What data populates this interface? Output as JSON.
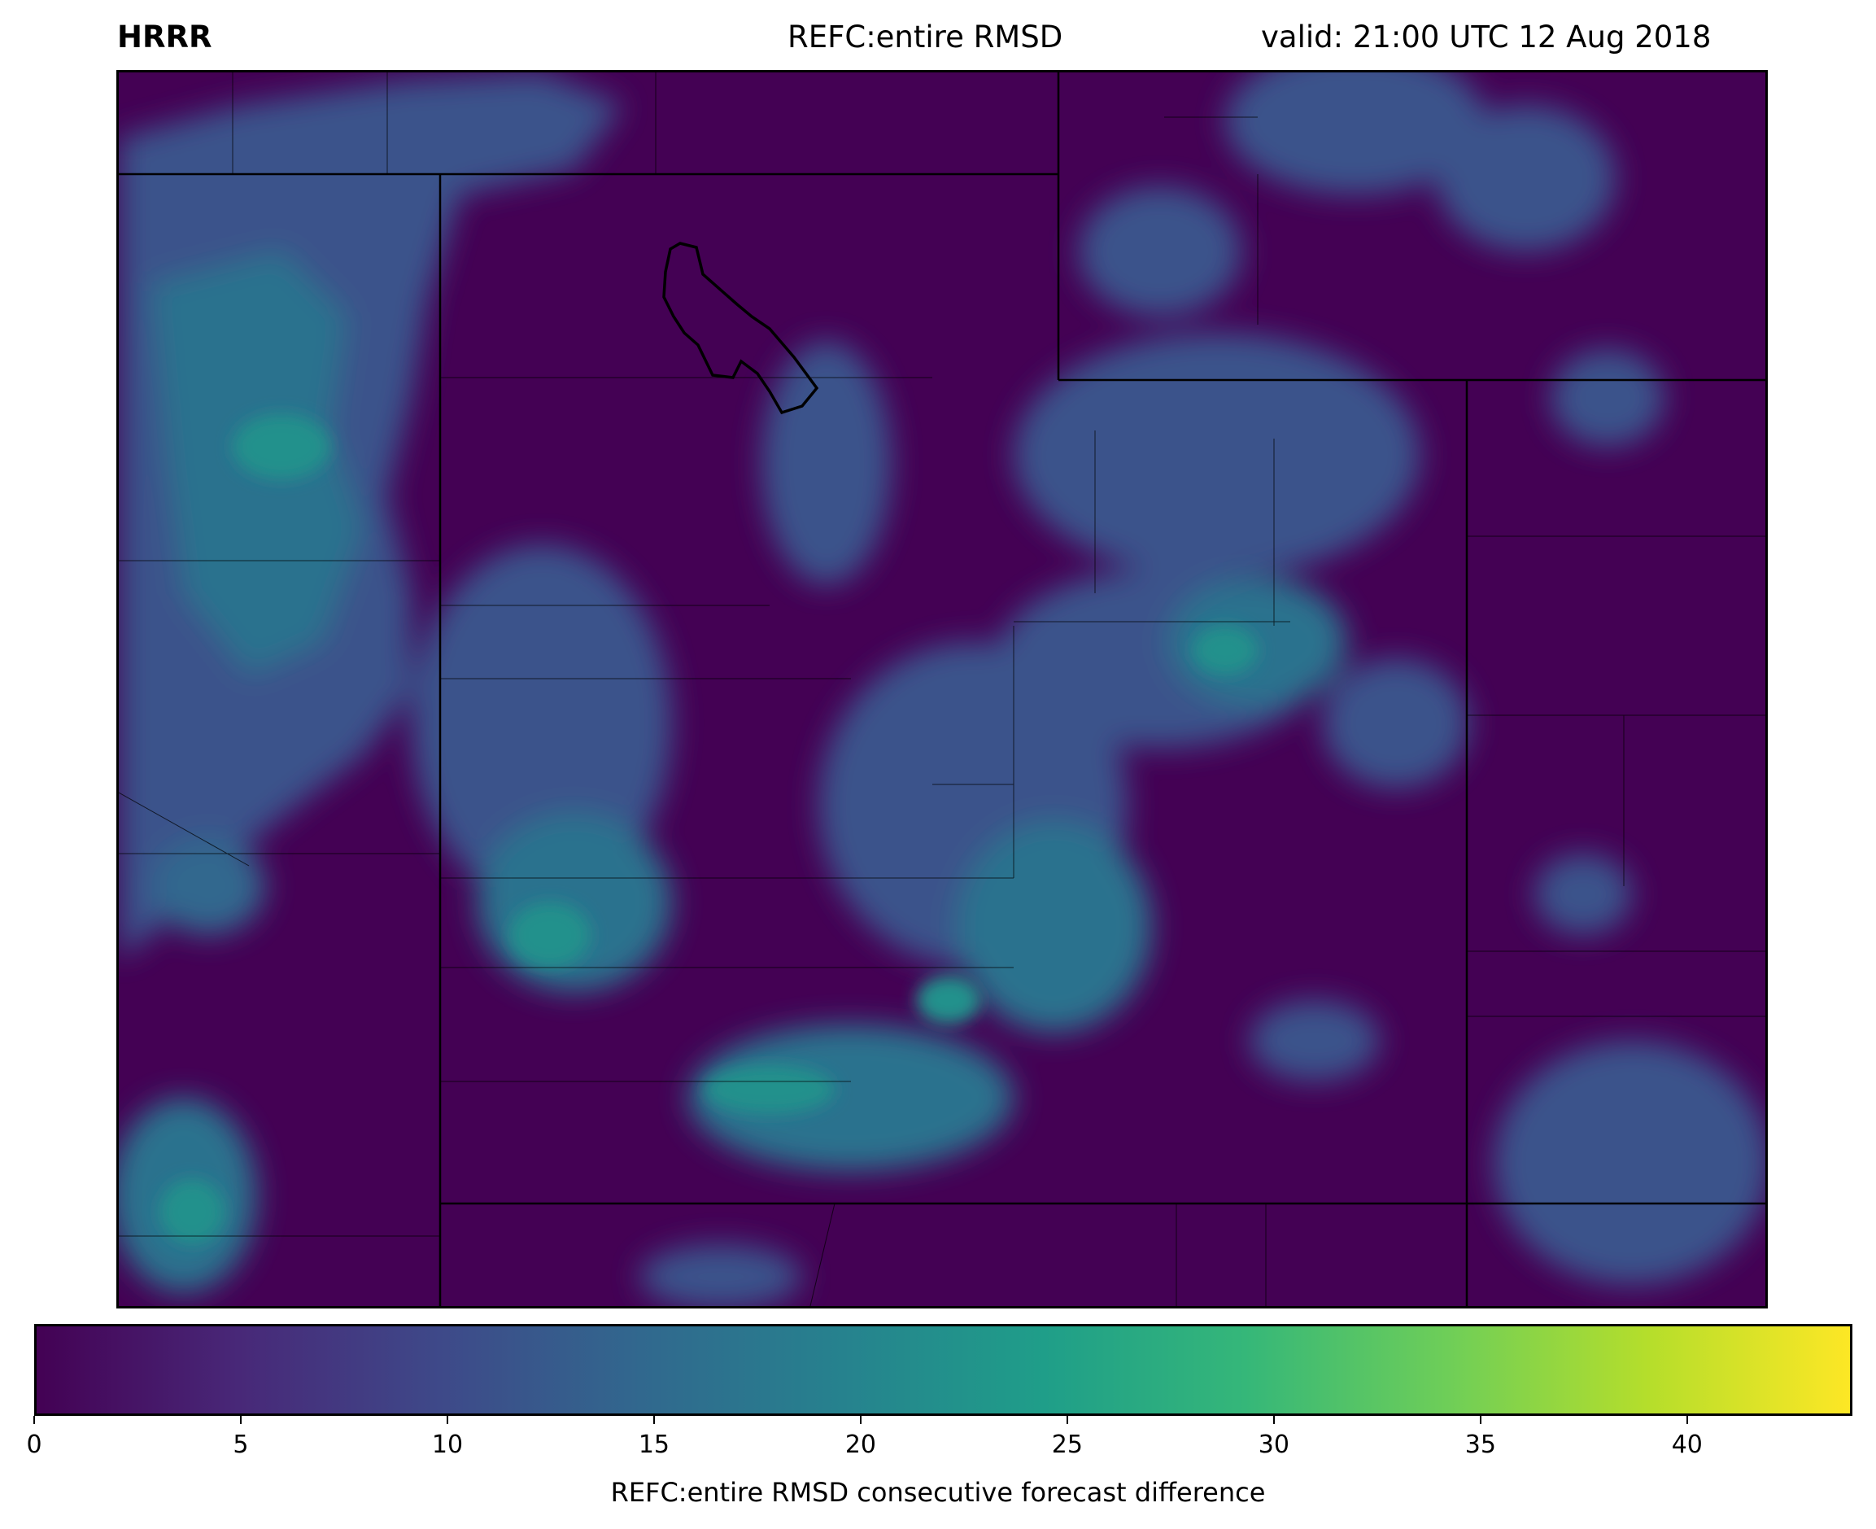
{
  "header": {
    "model": "HRRR",
    "field": "REFC:entire RMSD",
    "valid": "valid: 21:00 UTC 12 Aug 2018"
  },
  "map": {
    "background_color": "#440154",
    "boundary_color": "#000000"
  },
  "colorbar": {
    "min": 0,
    "max": 44,
    "ticks": [
      "0",
      "5",
      "10",
      "15",
      "20",
      "25",
      "30",
      "35",
      "40"
    ],
    "label": "REFC:entire RMSD consecutive forecast difference",
    "colors": [
      "#440154",
      "#482878",
      "#3e4989",
      "#31688e",
      "#26828e",
      "#1f9e89",
      "#35b779",
      "#6ece58",
      "#b5de2b",
      "#fde725"
    ]
  }
}
